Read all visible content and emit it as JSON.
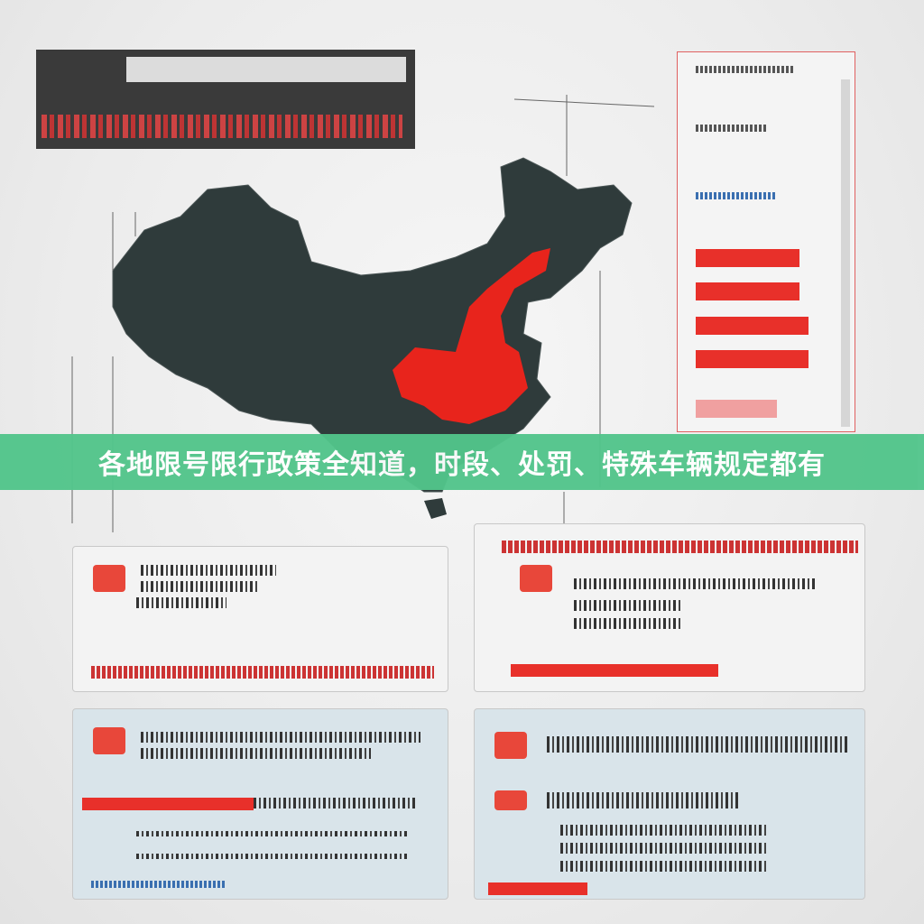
{
  "banner": {
    "title": "各地限号限行政策全知道，时段、处罚、特殊车辆规定都有",
    "color": "#52c58b"
  },
  "colors": {
    "map_dark": "#2f3b3b",
    "map_highlight": "#e8241c",
    "accent_red": "#e8302a"
  }
}
